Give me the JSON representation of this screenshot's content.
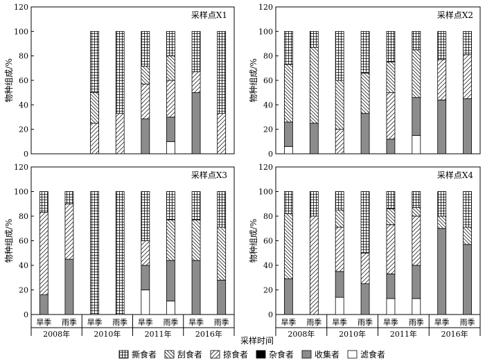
{
  "chart_data": {
    "type": "bar",
    "subtype": "stacked-100",
    "ylabel": "物种组成/%",
    "xlabel": "采样时间",
    "ylim": [
      0,
      120
    ],
    "yticks": [
      0,
      20,
      40,
      60,
      80,
      100,
      120
    ],
    "categories": [
      "旱季",
      "雨季",
      "旱季",
      "雨季",
      "旱季",
      "雨季",
      "旱季",
      "雨季"
    ],
    "years": [
      "2008年",
      "2010年",
      "2011年",
      "2016年"
    ],
    "stack_order": [
      "滤食者",
      "收集者",
      "杂食者",
      "掠食者",
      "刮食者",
      "撕食者"
    ],
    "legend_order": [
      "撕食者",
      "刮食者",
      "掠食者",
      "杂食者",
      "收集者",
      "滤食者"
    ],
    "legend_position": "bottom",
    "grid": false,
    "groups": [
      {
        "name": "撕食者",
        "pattern": "grid"
      },
      {
        "name": "刮食者",
        "pattern": "backslash"
      },
      {
        "name": "掠食者",
        "pattern": "slash"
      },
      {
        "name": "杂食者",
        "pattern": "black"
      },
      {
        "name": "收集者",
        "pattern": "gray"
      },
      {
        "name": "滤食者",
        "pattern": "white"
      }
    ],
    "panels": [
      {
        "label": "采样点X1",
        "bars": [
          null,
          null,
          {
            "滤食者": 0,
            "收集者": 0,
            "杂食者": 0,
            "掠食者": 25,
            "刮食者": 25,
            "撕食者": 50
          },
          {
            "滤食者": 0,
            "收集者": 0,
            "杂食者": 0,
            "掠食者": 33,
            "刮食者": 0,
            "撕食者": 67
          },
          {
            "滤食者": 0,
            "收集者": 28.5,
            "杂食者": 0,
            "掠食者": 28.5,
            "刮食者": 14.5,
            "撕食者": 28.5
          },
          {
            "滤食者": 10,
            "收集者": 20,
            "杂食者": 0,
            "掠食者": 30,
            "刮食者": 20,
            "撕食者": 20
          },
          {
            "滤食者": 0,
            "收集者": 50,
            "杂食者": 0,
            "掠食者": 17,
            "刮食者": 0,
            "撕食者": 33
          },
          {
            "滤食者": 0,
            "收集者": 0,
            "杂食者": 0,
            "掠食者": 33,
            "刮食者": 0,
            "撕食者": 67
          }
        ]
      },
      {
        "label": "采样点X2",
        "bars": [
          {
            "滤食者": 6,
            "收集者": 20,
            "杂食者": 0,
            "掠食者": 0,
            "刮食者": 47,
            "撕食者": 27
          },
          {
            "滤食者": 0,
            "收集者": 25,
            "杂食者": 0,
            "掠食者": 0,
            "刮食者": 62,
            "撕食者": 13
          },
          {
            "滤食者": 0,
            "收集者": 0,
            "杂食者": 0,
            "掠食者": 20,
            "刮食者": 40,
            "撕食者": 40
          },
          {
            "滤食者": 0,
            "收集者": 33,
            "杂食者": 0,
            "掠食者": 0,
            "刮食者": 33,
            "撕食者": 34
          },
          {
            "滤食者": 0,
            "收集者": 12,
            "杂食者": 0,
            "掠食者": 38,
            "刮食者": 25,
            "撕食者": 25
          },
          {
            "滤食者": 15,
            "收集者": 31,
            "杂食者": 0,
            "掠食者": 0,
            "刮食者": 39,
            "撕食者": 15
          },
          {
            "滤食者": 0,
            "收集者": 44,
            "杂食者": 0,
            "掠食者": 33,
            "刮食者": 0,
            "撕食者": 23
          },
          {
            "滤食者": 0,
            "收集者": 45,
            "杂食者": 0,
            "掠食者": 36,
            "刮食者": 0,
            "撕食者": 19
          }
        ]
      },
      {
        "label": "采样点X3",
        "bars": [
          {
            "滤食者": 0,
            "收集者": 16,
            "杂食者": 0,
            "掠食者": 67,
            "刮食者": 0,
            "撕食者": 17
          },
          {
            "滤食者": 0,
            "收集者": 45,
            "杂食者": 0,
            "掠食者": 45,
            "刮食者": 0,
            "撕食者": 10
          },
          {
            "滤食者": 0,
            "收集者": 0,
            "杂食者": 0,
            "掠食者": 0,
            "刮食者": 0,
            "撕食者": 100
          },
          {
            "滤食者": 0,
            "收集者": 0,
            "杂食者": 0,
            "掠食者": 0,
            "刮食者": 0,
            "撕食者": 100
          },
          {
            "滤食者": 20,
            "收集者": 20,
            "杂食者": 0,
            "掠食者": 20,
            "刮食者": 0,
            "撕食者": 40
          },
          {
            "滤食者": 11,
            "收集者": 33,
            "杂食者": 0,
            "掠食者": 0,
            "刮食者": 33,
            "撕食者": 23
          },
          {
            "滤食者": 0,
            "收集者": 44,
            "杂食者": 0,
            "掠食者": 0,
            "刮食者": 33,
            "撕食者": 23
          },
          {
            "滤食者": 0,
            "收集者": 28,
            "杂食者": 0,
            "掠食者": 0,
            "刮食者": 43,
            "撕食者": 29
          }
        ]
      },
      {
        "label": "采样点X4",
        "bars": [
          {
            "滤食者": 0,
            "收集者": 29,
            "杂食者": 0,
            "掠食者": 0,
            "刮食者": 53,
            "撕食者": 18
          },
          {
            "滤食者": 0,
            "收集者": 0,
            "杂食者": 0,
            "掠食者": 80,
            "刮食者": 0,
            "撕食者": 20
          },
          {
            "滤食者": 14,
            "收集者": 21,
            "杂食者": 0,
            "掠食者": 36,
            "刮食者": 14,
            "撕食者": 15
          },
          {
            "滤食者": 0,
            "收集者": 25,
            "杂食者": 0,
            "掠食者": 25,
            "刮食者": 0,
            "撕食者": 50
          },
          {
            "滤食者": 13,
            "收集者": 20,
            "杂食者": 0,
            "掠食者": 40,
            "刮食者": 13,
            "撕食者": 14
          },
          {
            "滤食者": 13,
            "收集者": 27,
            "杂食者": 0,
            "掠食者": 40,
            "刮食者": 7,
            "撕食者": 13
          },
          {
            "滤食者": 0,
            "收集者": 70,
            "杂食者": 0,
            "掠食者": 0,
            "刮食者": 10,
            "撕食者": 20
          },
          {
            "滤食者": 0,
            "收集者": 57,
            "杂食者": 0,
            "掠食者": 0,
            "刮食者": 14,
            "撕食者": 29
          }
        ]
      }
    ]
  }
}
